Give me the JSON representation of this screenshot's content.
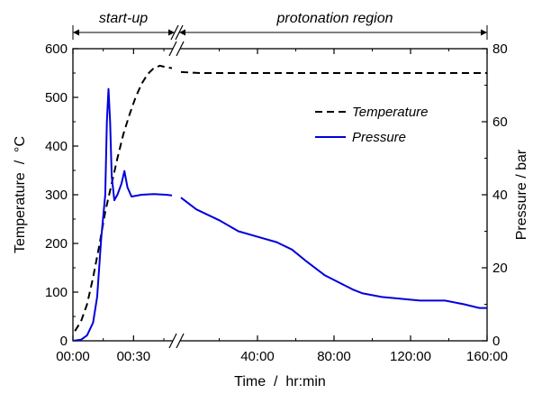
{
  "chart_data": {
    "type": "line",
    "xlabel": "Time  /  hr:min",
    "ylabel": "Temperature  /  °C",
    "y2label": "Pressure / bar",
    "ylim": [
      0,
      600
    ],
    "y2lim": [
      0,
      80
    ],
    "y_ticks": [
      "0",
      "100",
      "200",
      "300",
      "400",
      "500",
      "600"
    ],
    "y2_ticks": [
      "0",
      "20",
      "40",
      "60",
      "80"
    ],
    "x_axis_broken": true,
    "x_segments": [
      {
        "name": "start-up",
        "unit": "minutes",
        "range": [
          0,
          49
        ],
        "ticks": [
          {
            "value": 0,
            "label": "00:00"
          },
          {
            "value": 30,
            "label": "00:30"
          }
        ]
      },
      {
        "name": "protonation region",
        "unit": "hours",
        "range": [
          0,
          160
        ],
        "ticks": [
          {
            "value": 40,
            "label": "40:00"
          },
          {
            "value": 80,
            "label": "80:00"
          },
          {
            "value": 120,
            "label": "120:00"
          },
          {
            "value": 160,
            "label": "160:00"
          }
        ]
      }
    ],
    "regions": [
      {
        "label": "start-up",
        "segment": 0
      },
      {
        "label": "protonation region",
        "segment": 1
      }
    ],
    "legend": {
      "position": "top-right",
      "entries": [
        "Temperature",
        "Pressure"
      ]
    },
    "series": [
      {
        "name": "Temperature",
        "axis": "left",
        "color": "#000000",
        "style": "dashed",
        "segment_points": [
          [
            [
              1,
              20
            ],
            [
              4,
              40
            ],
            [
              7,
              75
            ],
            [
              10,
              130
            ],
            [
              13,
              195
            ],
            [
              16,
              265
            ],
            [
              19,
              320
            ],
            [
              22,
              375
            ],
            [
              25,
              425
            ],
            [
              28,
              465
            ],
            [
              31,
              500
            ],
            [
              34,
              528
            ],
            [
              37,
              548
            ],
            [
              40,
              560
            ],
            [
              43,
              565
            ],
            [
              46,
              562
            ],
            [
              49,
              560
            ]
          ],
          [
            [
              0,
              552
            ],
            [
              10,
              550
            ],
            [
              40,
              550
            ],
            [
              80,
              550
            ],
            [
              120,
              550
            ],
            [
              160,
              550
            ]
          ]
        ]
      },
      {
        "name": "Pressure",
        "axis": "right",
        "color": "#0000dd",
        "style": "solid",
        "segment_points": [
          [
            [
              0,
              0
            ],
            [
              4,
              0.3
            ],
            [
              7,
              1.5
            ],
            [
              10,
              5
            ],
            [
              12,
              12
            ],
            [
              14,
              28
            ],
            [
              16,
              40
            ],
            [
              16.8,
              60
            ],
            [
              17.6,
              69
            ],
            [
              18.4,
              60
            ],
            [
              19.2,
              45
            ],
            [
              20.5,
              38.5
            ],
            [
              22,
              40
            ],
            [
              24,
              43
            ],
            [
              25.5,
              46.5
            ],
            [
              27,
              42
            ],
            [
              29,
              39.5
            ],
            [
              34,
              40
            ],
            [
              40,
              40.2
            ],
            [
              46,
              40
            ],
            [
              49,
              39.8
            ]
          ],
          [
            [
              0,
              39.2
            ],
            [
              8,
              36
            ],
            [
              20,
              33
            ],
            [
              30,
              30
            ],
            [
              40,
              28.5
            ],
            [
              50,
              27
            ],
            [
              58,
              25
            ],
            [
              65,
              22
            ],
            [
              75,
              18
            ],
            [
              90,
              14
            ],
            [
              95,
              13
            ],
            [
              105,
              12
            ],
            [
              125,
              11
            ],
            [
              138,
              11
            ],
            [
              148,
              10
            ],
            [
              156,
              9
            ],
            [
              160,
              9
            ]
          ]
        ]
      }
    ]
  }
}
